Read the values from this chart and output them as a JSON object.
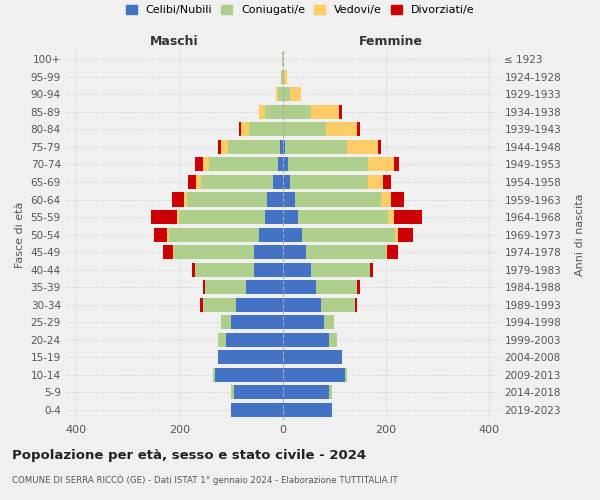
{
  "age_groups": [
    "0-4",
    "5-9",
    "10-14",
    "15-19",
    "20-24",
    "25-29",
    "30-34",
    "35-39",
    "40-44",
    "45-49",
    "50-54",
    "55-59",
    "60-64",
    "65-69",
    "70-74",
    "75-79",
    "80-84",
    "85-89",
    "90-94",
    "95-99",
    "100+"
  ],
  "birth_years": [
    "2019-2023",
    "2014-2018",
    "2009-2013",
    "2004-2008",
    "1999-2003",
    "1994-1998",
    "1989-1993",
    "1984-1988",
    "1979-1983",
    "1974-1978",
    "1969-1973",
    "1964-1968",
    "1959-1963",
    "1954-1958",
    "1949-1953",
    "1944-1948",
    "1939-1943",
    "1934-1938",
    "1929-1933",
    "1924-1928",
    "≤ 1923"
  ],
  "males": {
    "celibi": [
      100,
      95,
      130,
      125,
      110,
      100,
      90,
      70,
      55,
      55,
      45,
      35,
      30,
      18,
      8,
      5,
      0,
      0,
      0,
      0,
      0
    ],
    "coniugati": [
      0,
      5,
      5,
      0,
      15,
      20,
      65,
      80,
      115,
      155,
      175,
      165,
      155,
      140,
      135,
      100,
      65,
      35,
      8,
      3,
      1
    ],
    "vedovi": [
      0,
      0,
      0,
      0,
      0,
      0,
      0,
      0,
      0,
      2,
      3,
      5,
      5,
      10,
      12,
      15,
      15,
      10,
      5,
      0,
      0
    ],
    "divorziati": [
      0,
      0,
      0,
      0,
      0,
      0,
      5,
      5,
      5,
      20,
      25,
      50,
      25,
      15,
      15,
      5,
      5,
      0,
      0,
      0,
      0
    ]
  },
  "females": {
    "nubili": [
      95,
      90,
      120,
      115,
      90,
      80,
      75,
      65,
      55,
      45,
      38,
      30,
      25,
      15,
      10,
      5,
      0,
      0,
      0,
      0,
      0
    ],
    "coniugate": [
      0,
      5,
      5,
      0,
      15,
      20,
      65,
      80,
      115,
      155,
      180,
      175,
      165,
      150,
      155,
      120,
      85,
      55,
      15,
      3,
      0
    ],
    "vedove": [
      0,
      0,
      0,
      0,
      0,
      0,
      0,
      0,
      0,
      3,
      5,
      10,
      20,
      30,
      50,
      60,
      60,
      55,
      20,
      5,
      0
    ],
    "divorziate": [
      0,
      0,
      0,
      0,
      0,
      0,
      5,
      5,
      5,
      20,
      30,
      55,
      25,
      15,
      10,
      5,
      5,
      5,
      0,
      0,
      0
    ]
  },
  "colors": {
    "celibi_nubili": "#4472C4",
    "coniugati": "#AECF8B",
    "vedovi": "#FFCC66",
    "divorziati": "#CC0000"
  },
  "xlim": 420,
  "title": "Popolazione per età, sesso e stato civile - 2024",
  "subtitle": "COMUNE DI SERRA RICCÒ (GE) - Dati ISTAT 1° gennaio 2024 - Elaborazione TUTTITALIA.IT",
  "ylabel_left": "Fasce di età",
  "ylabel_right": "Anni di nascita",
  "xlabel_left": "Maschi",
  "xlabel_right": "Femmine",
  "legend_labels": [
    "Celibi/Nubili",
    "Coniugati/e",
    "Vedovi/e",
    "Divorziati/e"
  ],
  "bg_color": "#f0f0f0",
  "plot_bg": "#f0f0f0"
}
